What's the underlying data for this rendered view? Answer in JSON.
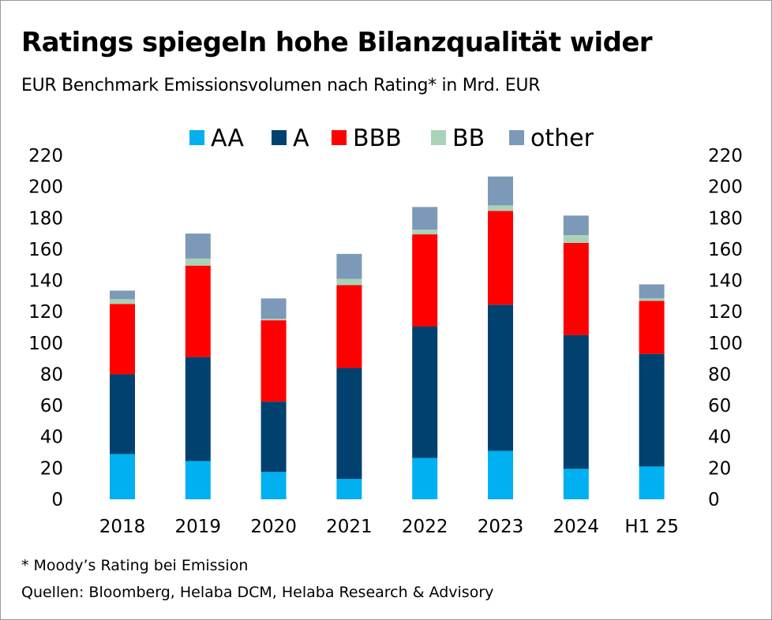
{
  "header": {
    "title": "Ratings spiegeln hohe Bilanzqualität wider",
    "subtitle": "EUR Benchmark Emissionsvolumen nach Rating* in Mrd. EUR"
  },
  "footer": {
    "footnote": "*  Moody’s Rating bei Emission",
    "source": "Quellen: Bloomberg, Helaba DCM, Helaba Research & Advisory"
  },
  "colors": {
    "AA": "#00b0f0",
    "A": "#004170",
    "BBB": "#ff0000",
    "BB": "#a9d3b9",
    "other": "#7c9ab8"
  },
  "chart_data": {
    "type": "bar",
    "stacked": true,
    "categories": [
      "2018",
      "2019",
      "2020",
      "2021",
      "2022",
      "2023",
      "2024",
      "H1 25"
    ],
    "series": [
      {
        "name": "AA",
        "values": [
          29,
          24.5,
          17.5,
          13,
          26.5,
          31,
          19.5,
          21
        ]
      },
      {
        "name": "A",
        "values": [
          51,
          66.5,
          45,
          71,
          84,
          93.5,
          85.5,
          72
        ]
      },
      {
        "name": "BBB",
        "values": [
          45,
          58.5,
          52,
          53,
          59,
          60,
          59,
          34
        ]
      },
      {
        "name": "BB",
        "values": [
          3,
          4.5,
          1,
          4,
          3,
          3.5,
          5,
          1.5
        ]
      },
      {
        "name": "other",
        "values": [
          5.5,
          16,
          13,
          16,
          14.5,
          18.5,
          12.5,
          9
        ]
      }
    ],
    "ylim": [
      0,
      220
    ],
    "yticks": [
      0,
      20,
      40,
      60,
      80,
      100,
      120,
      140,
      160,
      180,
      200,
      220
    ],
    "tick_labels_left": [
      "0",
      "20",
      "40",
      "60",
      "80",
      "100",
      "120",
      "140",
      "160",
      "180",
      "200",
      "220"
    ],
    "tick_labels_right": [
      "0",
      "20",
      "40",
      "60",
      "80",
      "100",
      "120",
      "140",
      "160",
      "180",
      "200",
      "220"
    ],
    "secondary_axis": true,
    "grid": false,
    "legend": "top",
    "xlabel": "",
    "ylabel": ""
  }
}
